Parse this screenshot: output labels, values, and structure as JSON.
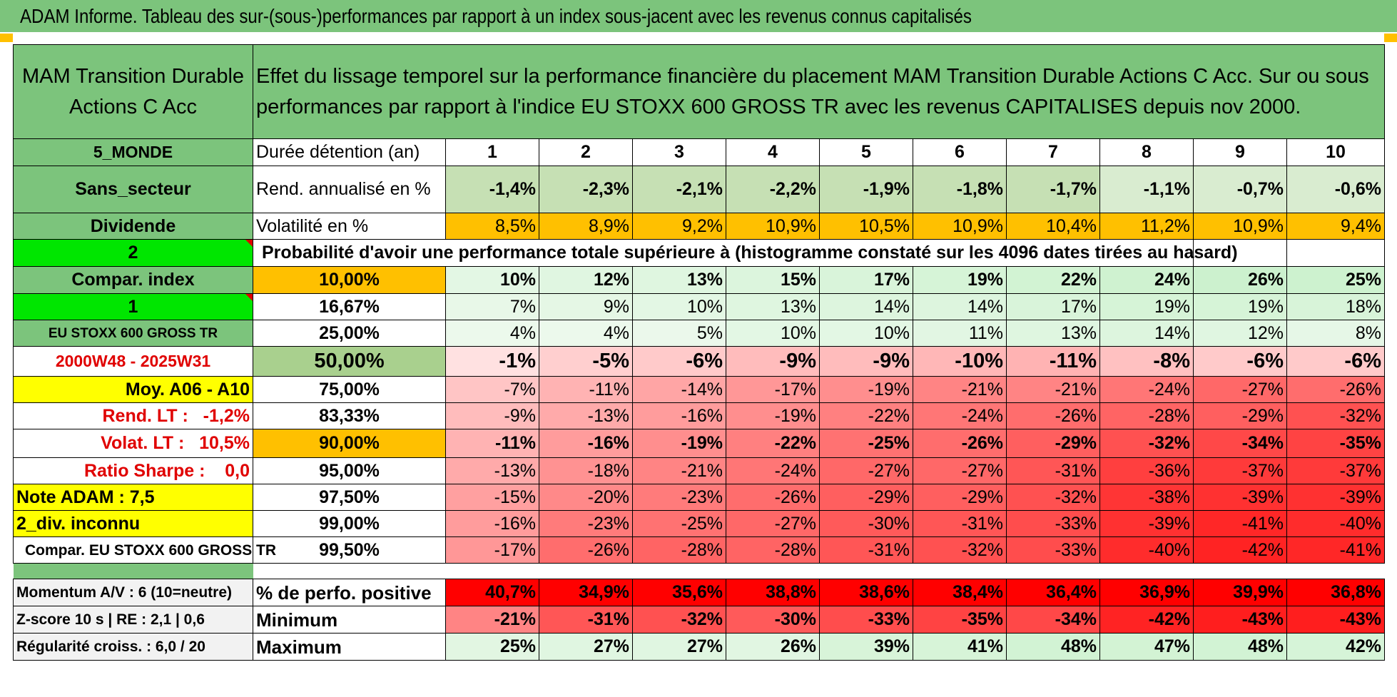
{
  "banner_title": "ADAM Informe. Tableau des sur-(sous-)performances par rapport à un index sous-jacent avec les revenus connus capitalisés",
  "fund_name": "MAM Transition Durable Actions C Acc",
  "description": "Effet du lissage temporel sur la performance financière du placement MAM Transition Durable Actions C Acc. Sur ou sous performances par rapport à l'indice EU STOXX 600 GROSS TR avec les revenus CAPITALISES depuis nov 2000.",
  "holding_label": "Durée détention (an)",
  "years": [
    "1",
    "2",
    "3",
    "4",
    "5",
    "6",
    "7",
    "8",
    "9",
    "10"
  ],
  "rend_label": "Rend. annualisé en %",
  "rend_values": [
    "-1,4%",
    "-2,3%",
    "-2,1%",
    "-2,2%",
    "-1,9%",
    "-1,8%",
    "-1,7%",
    "-1,1%",
    "-0,7%",
    "-0,6%"
  ],
  "vol_label": "Volatilité en %",
  "vol_values": [
    "8,5%",
    "8,9%",
    "9,2%",
    "10,9%",
    "10,5%",
    "10,9%",
    "10,4%",
    "11,2%",
    "10,9%",
    "9,4%"
  ],
  "prob_heading": "Probabilité d'avoir une performance totale supérieure à (histogramme constaté sur les 4096 dates tirées au hasard)",
  "left_labels": {
    "zone": "5_MONDE",
    "sector": "Sans_secteur",
    "dividend": "Dividende",
    "two": "2",
    "compar_index": "Compar. index",
    "one": "1",
    "index_name": "EU STOXX 600 GROSS TR",
    "period": "2000W48 - 2025W31",
    "moy": "Moy. A06 - A10",
    "rend_lt": "Rend. LT :   -1,2%",
    "volat_lt": "Volat. LT :   10,5%",
    "sharpe": "Ratio Sharpe :    0,0",
    "note": "Note ADAM : 7,5",
    "div_inconnu": "2_div. inconnu",
    "compar_full": "Compar. EU STOXX 600 GROSS TR"
  },
  "prob_rows": [
    {
      "pct": "10,00%",
      "values": [
        "10%",
        "12%",
        "13%",
        "15%",
        "17%",
        "19%",
        "22%",
        "24%",
        "26%",
        "25%"
      ]
    },
    {
      "pct": "16,67%",
      "values": [
        "7%",
        "9%",
        "10%",
        "13%",
        "14%",
        "14%",
        "17%",
        "19%",
        "19%",
        "18%"
      ]
    },
    {
      "pct": "25,00%",
      "values": [
        "4%",
        "4%",
        "5%",
        "10%",
        "10%",
        "11%",
        "13%",
        "14%",
        "12%",
        "8%"
      ]
    },
    {
      "pct": "50,00%",
      "values": [
        "-1%",
        "-5%",
        "-6%",
        "-9%",
        "-9%",
        "-10%",
        "-11%",
        "-8%",
        "-6%",
        "-6%"
      ]
    },
    {
      "pct": "75,00%",
      "values": [
        "-7%",
        "-11%",
        "-14%",
        "-17%",
        "-19%",
        "-21%",
        "-21%",
        "-24%",
        "-27%",
        "-26%"
      ]
    },
    {
      "pct": "83,33%",
      "values": [
        "-9%",
        "-13%",
        "-16%",
        "-19%",
        "-22%",
        "-24%",
        "-26%",
        "-28%",
        "-29%",
        "-32%"
      ]
    },
    {
      "pct": "90,00%",
      "values": [
        "-11%",
        "-16%",
        "-19%",
        "-22%",
        "-25%",
        "-26%",
        "-29%",
        "-32%",
        "-34%",
        "-35%"
      ]
    },
    {
      "pct": "95,00%",
      "values": [
        "-13%",
        "-18%",
        "-21%",
        "-24%",
        "-27%",
        "-27%",
        "-31%",
        "-36%",
        "-37%",
        "-37%"
      ]
    },
    {
      "pct": "97,50%",
      "values": [
        "-15%",
        "-20%",
        "-23%",
        "-26%",
        "-29%",
        "-29%",
        "-32%",
        "-38%",
        "-39%",
        "-39%"
      ]
    },
    {
      "pct": "99,00%",
      "values": [
        "-16%",
        "-23%",
        "-25%",
        "-27%",
        "-30%",
        "-31%",
        "-33%",
        "-39%",
        "-41%",
        "-40%"
      ]
    },
    {
      "pct": "99,50%",
      "values": [
        "-17%",
        "-26%",
        "-28%",
        "-28%",
        "-31%",
        "-32%",
        "-33%",
        "-40%",
        "-42%",
        "-41%"
      ]
    }
  ],
  "bottom": {
    "momentum": "Momentum A/V : 6 (10=neutre)",
    "zscore": "Z-score 10 s | RE : 2,1 | 0,6",
    "regularite": "Régularité croiss. : 6,0 / 20",
    "pos_label": "% de perfo. positive",
    "pos_values": [
      "40,7%",
      "34,9%",
      "35,6%",
      "38,8%",
      "38,6%",
      "38,4%",
      "36,4%",
      "36,9%",
      "39,9%",
      "36,8%"
    ],
    "min_label": "Minimum",
    "min_values": [
      "-21%",
      "-31%",
      "-32%",
      "-30%",
      "-33%",
      "-35%",
      "-34%",
      "-42%",
      "-43%",
      "-43%"
    ],
    "max_label": "Maximum",
    "max_values": [
      "25%",
      "27%",
      "27%",
      "26%",
      "39%",
      "41%",
      "48%",
      "47%",
      "48%",
      "42%"
    ]
  },
  "colors": {
    "header_green": "#7cc47c",
    "bright_green": "#00e600",
    "volatility_orange": "#ffc000",
    "highlight_yellow": "#ffff00",
    "negative_red": "#ff0000",
    "positive_green": "#c6efce"
  }
}
